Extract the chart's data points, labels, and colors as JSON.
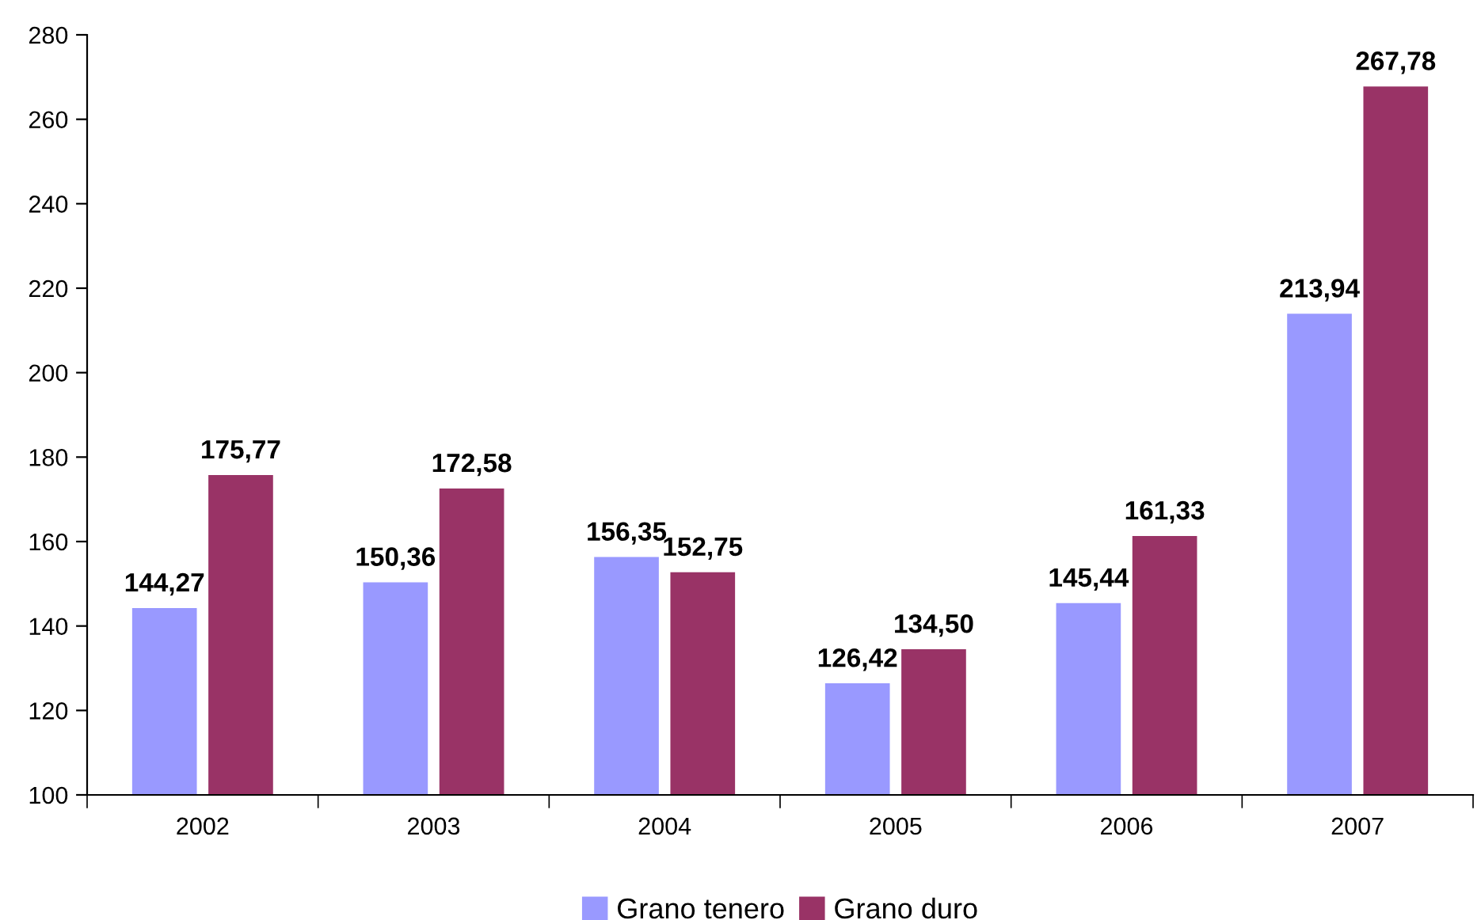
{
  "chart_data": {
    "type": "bar",
    "categories": [
      "2002",
      "2003",
      "2004",
      "2005",
      "2006",
      "2007"
    ],
    "series": [
      {
        "name": "Grano tenero",
        "color": "#9999ff",
        "values": [
          144.27,
          150.36,
          156.35,
          126.42,
          145.44,
          213.94
        ],
        "value_labels": [
          "144,27",
          "150,36",
          "156,35",
          "126,42",
          "145,44",
          "213,94"
        ]
      },
      {
        "name": "Grano duro",
        "color": "#993366",
        "values": [
          175.77,
          172.58,
          152.75,
          134.5,
          161.33,
          267.78
        ],
        "value_labels": [
          "175,77",
          "172,58",
          "152,75",
          "134,50",
          "161,33",
          "267,78"
        ]
      }
    ],
    "ylim": [
      100,
      280
    ],
    "yticks": [
      100,
      120,
      140,
      160,
      180,
      200,
      220,
      240,
      260,
      280
    ],
    "grid": false,
    "legend": "bottom"
  }
}
